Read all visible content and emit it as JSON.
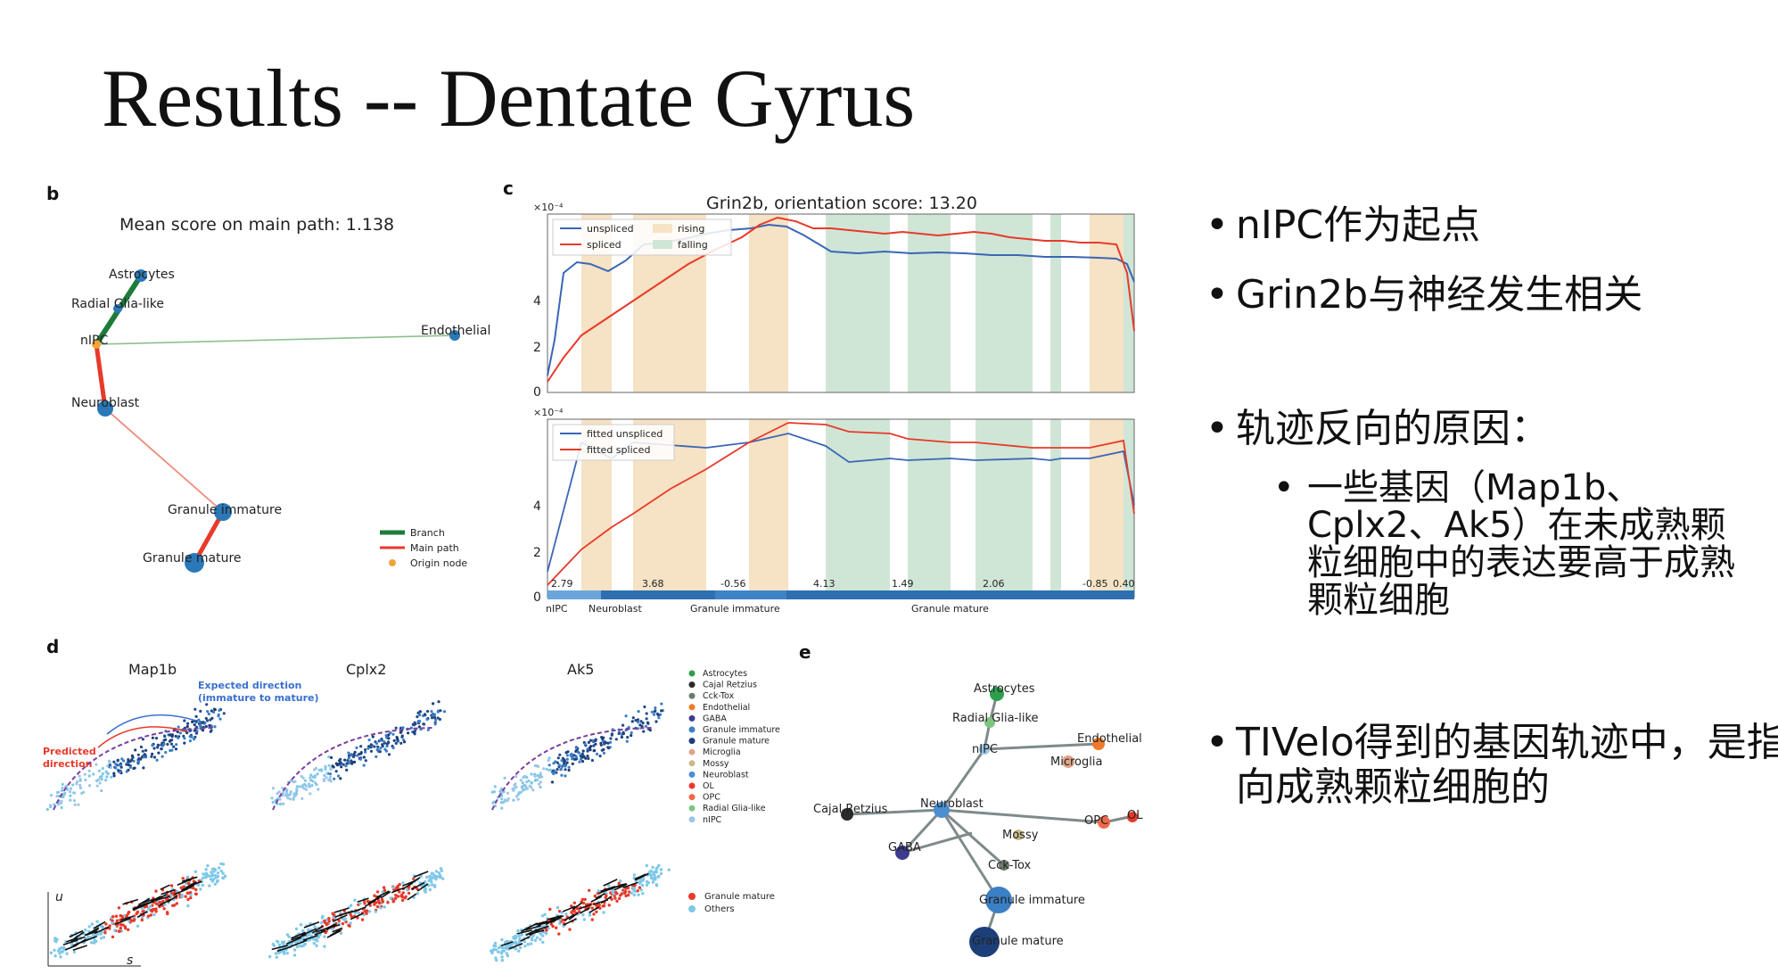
{
  "slide": {
    "title": "Results -- Dentate Gyrus"
  },
  "panel_b": {
    "letter": "b",
    "title": "Mean score on main path: 1.138",
    "nodes": [
      {
        "name": "Astrocytes"
      },
      {
        "name": "Radial Glia-like"
      },
      {
        "name": "nIPC"
      },
      {
        "name": "Endothelial"
      },
      {
        "name": "Neuroblast"
      },
      {
        "name": "Granule immature"
      },
      {
        "name": "Granule mature"
      }
    ],
    "legend": [
      "Branch",
      "Main path",
      "Origin node"
    ],
    "colors": {
      "branch": "#1e7b3a",
      "main_path": "#e8392a",
      "node": "#2a78b8",
      "origin": "#f2a33a",
      "edge": "#8cc08c"
    }
  },
  "panel_c": {
    "letter": "c",
    "title": "Grin2b, orientation score: 13.20",
    "top": {
      "scale": "×10⁻⁴",
      "legend_lines": [
        "unspliced",
        "spliced"
      ],
      "legend_regions": [
        "rising",
        "falling"
      ],
      "yticks": [
        "0",
        "2",
        "4"
      ]
    },
    "bottom": {
      "scale": "×10⁻⁴",
      "legend_lines": [
        "fitted unspliced",
        "fitted spliced"
      ],
      "yticks": [
        "0",
        "2",
        "4"
      ],
      "segment_scores": [
        "2.79",
        "3.68",
        "-0.56",
        "4.13",
        "1.49",
        "2.06",
        "-0.85",
        "0.40"
      ],
      "x_groups": [
        "nIPC",
        "Neuroblast",
        "Granule immature",
        "Granule mature"
      ]
    },
    "colors": {
      "unspliced": "#3a66b5",
      "spliced": "#e8392a",
      "rising": "#f6e2c4",
      "falling": "#cfe6d6"
    }
  },
  "panel_d": {
    "letter": "d",
    "genes": [
      "Map1b",
      "Cplx2",
      "Ak5"
    ],
    "annotations": {
      "expected": "Expected direction\n(immature to mature)",
      "predicted": "Predicted\ndirection"
    },
    "axis_u": "u",
    "axis_s": "s",
    "legend_top": [
      {
        "name": "Astrocytes",
        "color": "#2e9e4d"
      },
      {
        "name": "Cajal Retzius",
        "color": "#2b2b2b"
      },
      {
        "name": "Cck-Tox",
        "color": "#6f7a6f"
      },
      {
        "name": "Endothelial",
        "color": "#ef7a2a"
      },
      {
        "name": "GABA",
        "color": "#3b3b8f"
      },
      {
        "name": "Granule immature",
        "color": "#3b7fc4"
      },
      {
        "name": "Granule mature",
        "color": "#1c3f7a"
      },
      {
        "name": "Microglia",
        "color": "#e0a48a"
      },
      {
        "name": "Mossy",
        "color": "#c9b98a"
      },
      {
        "name": "Neuroblast",
        "color": "#4b8fd0"
      },
      {
        "name": "OL",
        "color": "#e8392a"
      },
      {
        "name": "OPC",
        "color": "#f06a4a"
      },
      {
        "name": "Radial Glia-like",
        "color": "#7fc47f"
      },
      {
        "name": "nIPC",
        "color": "#9cc6e8"
      }
    ],
    "legend_bottom": [
      {
        "name": "Granule mature",
        "color": "#e8392a"
      },
      {
        "name": "Others",
        "color": "#7fc8e8"
      }
    ]
  },
  "panel_e": {
    "letter": "e",
    "nodes": [
      "Astrocytes",
      "Radial Glia-like",
      "nIPC",
      "Endothelial",
      "Microglia",
      "Cajal Retzius",
      "Neuroblast",
      "OPC",
      "OL",
      "Mossy",
      "GABA",
      "Cck-Tox",
      "Granule immature",
      "Granule mature"
    ]
  },
  "bullets": [
    {
      "level": 1,
      "text": "nIPC作为起点"
    },
    {
      "level": 1,
      "text": "Grin2b与神经发生相关"
    },
    {
      "level": 1,
      "text": "轨迹反向的原因："
    },
    {
      "level": 2,
      "text": "一些基因（Map1b、Cplx2、Ak5）在未成熟颗粒细胞中的表达要高于成熟颗粒细胞"
    },
    {
      "level": 1,
      "text": "TIVelo得到的基因轨迹中，是指向成熟颗粒细胞的"
    }
  ]
}
